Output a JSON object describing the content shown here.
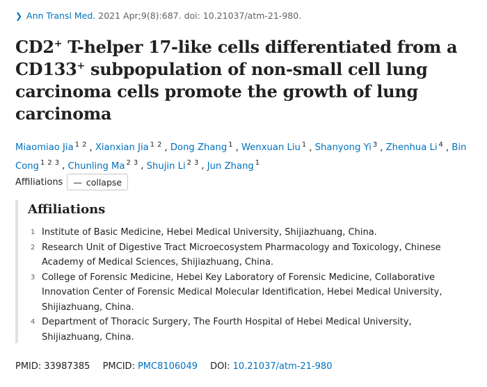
{
  "citation": {
    "journal": "Ann Transl Med.",
    "details": "2021 Apr;9(8):687. doi: 10.21037/atm-21-980."
  },
  "title": {
    "part1": "CD2",
    "sup1": "+",
    "part2": " T-helper 17-like cells differentiated from a CD133",
    "sup2": "+",
    "part3": " subpopulation of non-small cell lung carcinoma cells promote the growth of lung carcinoma"
  },
  "authors": [
    {
      "name": "Miaomiao Jia",
      "affs": [
        "1",
        "2"
      ]
    },
    {
      "name": "Xianxian Jia",
      "affs": [
        "1",
        "2"
      ]
    },
    {
      "name": "Dong Zhang",
      "affs": [
        "1"
      ]
    },
    {
      "name": "Wenxuan Liu",
      "affs": [
        "1"
      ]
    },
    {
      "name": "Shanyong Yi",
      "affs": [
        "3"
      ]
    },
    {
      "name": "Zhenhua Li",
      "affs": [
        "4"
      ]
    },
    {
      "name": "Bin Cong",
      "affs": [
        "1",
        "2",
        "3"
      ]
    },
    {
      "name": "Chunling Ma",
      "affs": [
        "2",
        "3"
      ]
    },
    {
      "name": "Shujin Li",
      "affs": [
        "2",
        "3"
      ]
    },
    {
      "name": "Jun Zhang",
      "affs": [
        "1"
      ]
    }
  ],
  "affiliations_toggle": {
    "label": "Affiliations",
    "button_label": "collapse"
  },
  "affiliations": {
    "heading": "Affiliations",
    "items": [
      {
        "num": "1",
        "text": "Institute of Basic Medicine, Hebei Medical University, Shijiazhuang, China."
      },
      {
        "num": "2",
        "text": "Research Unit of Digestive Tract Microecosystem Pharmacology and Toxicology, Chinese Academy of Medical Sciences, Shijiazhuang, China."
      },
      {
        "num": "3",
        "text": "College of Forensic Medicine, Hebei Key Laboratory of Forensic Medicine, Collaborative Innovation Center of Forensic Medical Molecular Identification, Hebei Medical University, Shijiazhuang, China."
      },
      {
        "num": "4",
        "text": "Department of Thoracic Surgery, The Fourth Hospital of Hebei Medical University, Shijiazhuang, China."
      }
    ]
  },
  "identifiers": {
    "pmid_label": "PMID:",
    "pmid": "33987385",
    "pmcid_label": "PMCID:",
    "pmcid": "PMC8106049",
    "doi_label": "DOI:",
    "doi": "10.21037/atm-21-980"
  },
  "colors": {
    "link": "#0071bc",
    "text": "#212121",
    "muted": "#5b616b",
    "rule": "#dfe1e2"
  },
  "icons": {
    "citation_chevron": "chevron-right-icon",
    "collapse_dash": "minus-icon"
  }
}
